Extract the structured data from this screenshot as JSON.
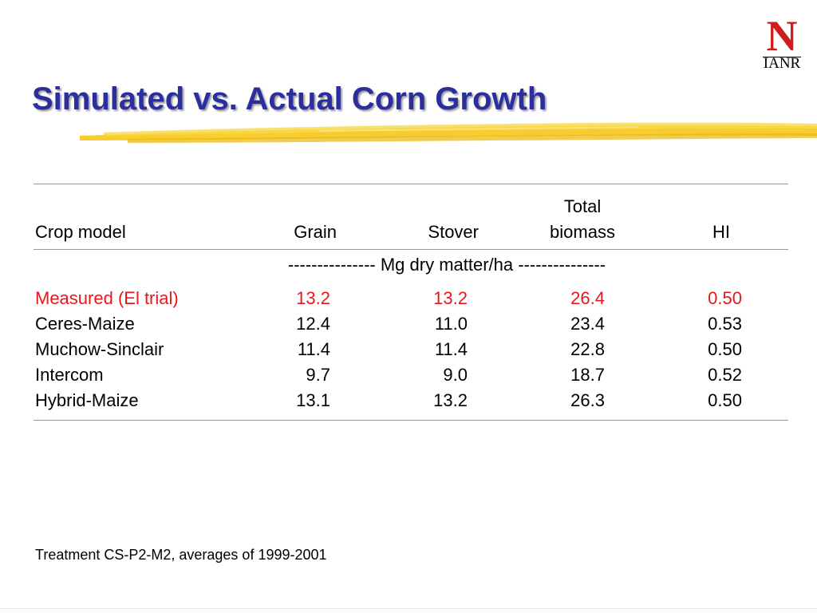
{
  "logo": {
    "letter": "N",
    "text": "IANR"
  },
  "title": "Simulated vs. Actual Corn Growth",
  "table": {
    "headers": {
      "crop_model": "Crop model",
      "grain": "Grain",
      "stover": "Stover",
      "total_line1": "Total",
      "total_line2": "biomass",
      "hi": "HI"
    },
    "units_row": "--------------- Mg dry matter/ha ---------------",
    "rows": [
      {
        "model": "Measured (El trial)",
        "grain": "13.2",
        "stover": "13.2",
        "total": "26.4",
        "hi": "0.50",
        "highlight": "#e8171a"
      },
      {
        "model": "Ceres-Maize",
        "grain": "12.4",
        "stover": "11.0",
        "total": "23.4",
        "hi": "0.53"
      },
      {
        "model": "Muchow-Sinclair",
        "grain": "11.4",
        "stover": "11.4",
        "total": "22.8",
        "hi": "0.50"
      },
      {
        "model": "Intercom",
        "grain": "9.7",
        "stover": "9.0",
        "total": "18.7",
        "hi": "0.52"
      },
      {
        "model": "Hybrid-Maize",
        "grain": "13.1",
        "stover": "13.2",
        "total": "26.3",
        "hi": "0.50"
      }
    ]
  },
  "footnote": "Treatment CS-P2-M2, averages of 1999-2001",
  "colors": {
    "title": "#2b2f9e",
    "highlight": "#e8171a",
    "logo": "#d01c1f",
    "swoosh": "#f4c30d"
  }
}
